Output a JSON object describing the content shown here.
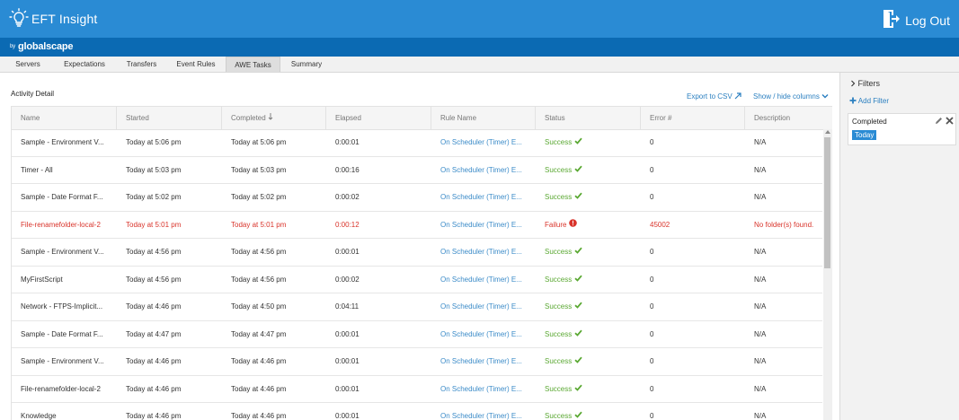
{
  "header": {
    "app_title": "EFT Insight",
    "logout_label": "Log Out",
    "byline_prefix": "by",
    "byline_brand": "globalscape"
  },
  "tabs": [
    {
      "label": "Servers"
    },
    {
      "label": "Expectations"
    },
    {
      "label": "Transfers"
    },
    {
      "label": "Event Rules"
    },
    {
      "label": "AWE Tasks",
      "active": true
    },
    {
      "label": "Summary"
    }
  ],
  "main": {
    "section_title": "Activity Detail",
    "export_label": "Export to CSV",
    "columns_label": "Show / hide columns"
  },
  "table": {
    "columns": [
      "Name",
      "Started",
      "Completed",
      "Elapsed",
      "Rule Name",
      "Status",
      "Error #",
      "Description"
    ],
    "sorted_column": "Completed",
    "rows": [
      {
        "name": "Sample - Environment V...",
        "started": "Today at 5:06 pm",
        "completed": "Today at 5:06 pm",
        "elapsed": "0:00:01",
        "rule": "On Scheduler (Timer) E...",
        "status": "Success",
        "error": "0",
        "description": "N/A",
        "failed": false
      },
      {
        "name": "Timer - All",
        "started": "Today at 5:03 pm",
        "completed": "Today at 5:03 pm",
        "elapsed": "0:00:16",
        "rule": "On Scheduler (Timer) E...",
        "status": "Success",
        "error": "0",
        "description": "N/A",
        "failed": false
      },
      {
        "name": "Sample - Date Format F...",
        "started": "Today at 5:02 pm",
        "completed": "Today at 5:02 pm",
        "elapsed": "0:00:02",
        "rule": "On Scheduler (Timer) E...",
        "status": "Success",
        "error": "0",
        "description": "N/A",
        "failed": false
      },
      {
        "name": "File-renamefolder-local-2",
        "started": "Today at 5:01 pm",
        "completed": "Today at 5:01 pm",
        "elapsed": "0:00:12",
        "rule": "On Scheduler (Timer) E...",
        "status": "Failure",
        "error": "45002",
        "description": "No folder(s) found.",
        "failed": true
      },
      {
        "name": "Sample - Environment V...",
        "started": "Today at 4:56 pm",
        "completed": "Today at 4:56 pm",
        "elapsed": "0:00:01",
        "rule": "On Scheduler (Timer) E...",
        "status": "Success",
        "error": "0",
        "description": "N/A",
        "failed": false
      },
      {
        "name": "MyFirstScript",
        "started": "Today at 4:56 pm",
        "completed": "Today at 4:56 pm",
        "elapsed": "0:00:02",
        "rule": "On Scheduler (Timer) E...",
        "status": "Success",
        "error": "0",
        "description": "N/A",
        "failed": false
      },
      {
        "name": "Network - FTPS-Implicit...",
        "started": "Today at 4:46 pm",
        "completed": "Today at 4:50 pm",
        "elapsed": "0:04:11",
        "rule": "On Scheduler (Timer) E...",
        "status": "Success",
        "error": "0",
        "description": "N/A",
        "failed": false
      },
      {
        "name": "Sample - Date Format F...",
        "started": "Today at 4:47 pm",
        "completed": "Today at 4:47 pm",
        "elapsed": "0:00:01",
        "rule": "On Scheduler (Timer) E...",
        "status": "Success",
        "error": "0",
        "description": "N/A",
        "failed": false
      },
      {
        "name": "Sample - Environment V...",
        "started": "Today at 4:46 pm",
        "completed": "Today at 4:46 pm",
        "elapsed": "0:00:01",
        "rule": "On Scheduler (Timer) E...",
        "status": "Success",
        "error": "0",
        "description": "N/A",
        "failed": false
      },
      {
        "name": "File-renamefolder-local-2",
        "started": "Today at 4:46 pm",
        "completed": "Today at 4:46 pm",
        "elapsed": "0:00:01",
        "rule": "On Scheduler (Timer) E...",
        "status": "Success",
        "error": "0",
        "description": "N/A",
        "failed": false
      },
      {
        "name": "Knowledge",
        "started": "Today at 4:46 pm",
        "completed": "Today at 4:46 pm",
        "elapsed": "0:00:01",
        "rule": "On Scheduler (Timer) E...",
        "status": "Success",
        "error": "0",
        "description": "N/A",
        "failed": false
      }
    ]
  },
  "filters": {
    "title": "Filters",
    "add_label": "Add Filter",
    "active": [
      {
        "name": "Completed",
        "value": "Today"
      }
    ]
  },
  "colors": {
    "header_blue": "#2a8bd4",
    "subbar_blue": "#0b6ab3",
    "link_blue": "#2a7fc0",
    "success_green": "#5aa832",
    "failure_red": "#d9342b"
  }
}
